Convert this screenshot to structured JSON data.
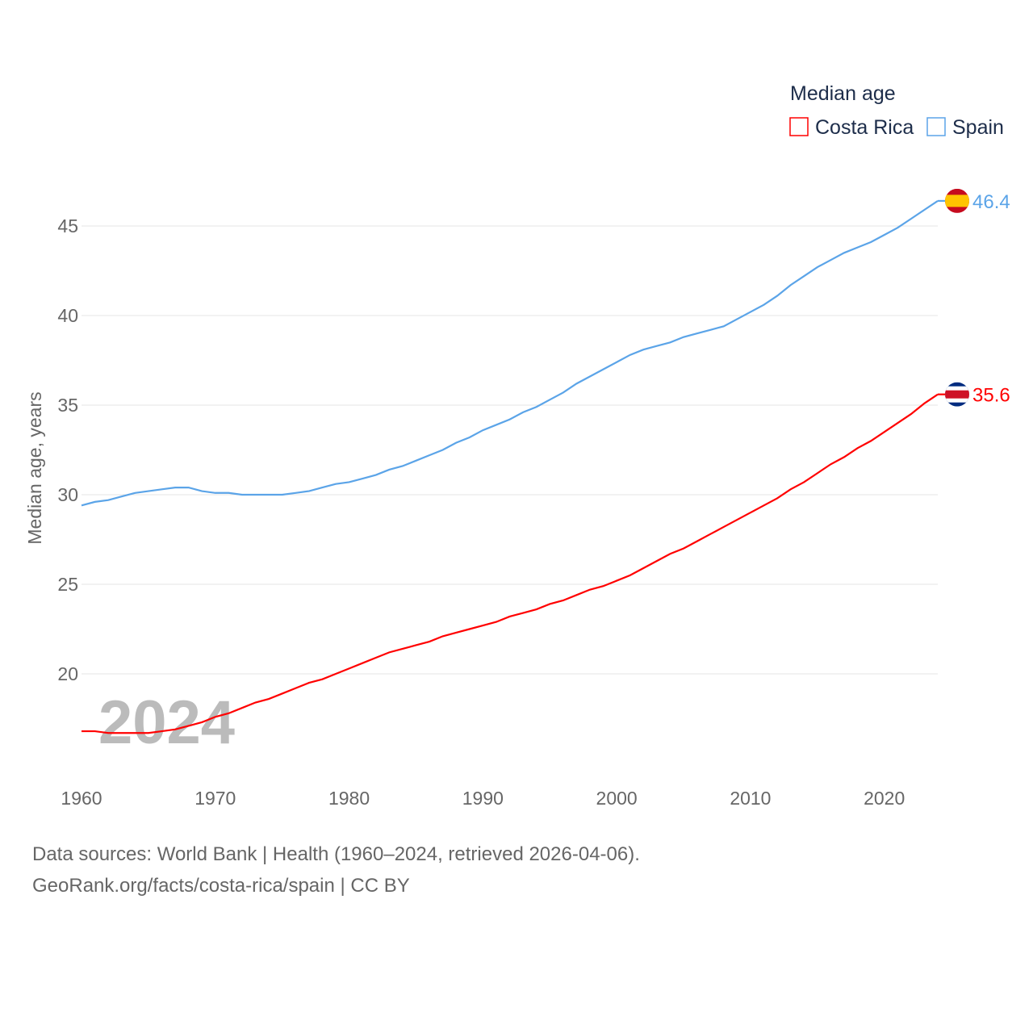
{
  "chart_data": {
    "type": "line",
    "title": "Median age",
    "ylabel": "Median age, years",
    "xlabel": "",
    "ylim": [
      15,
      47
    ],
    "xlim": [
      1960,
      2024
    ],
    "yticks": [
      20,
      25,
      30,
      35,
      40,
      45
    ],
    "xticks": [
      1960,
      1970,
      1980,
      1990,
      2000,
      2010,
      2020
    ],
    "grid": true,
    "legend_placement": "top-right",
    "year_label": "2024",
    "x": [
      1960,
      1961,
      1962,
      1963,
      1964,
      1965,
      1966,
      1967,
      1968,
      1969,
      1970,
      1971,
      1972,
      1973,
      1974,
      1975,
      1976,
      1977,
      1978,
      1979,
      1980,
      1981,
      1982,
      1983,
      1984,
      1985,
      1986,
      1987,
      1988,
      1989,
      1990,
      1991,
      1992,
      1993,
      1994,
      1995,
      1996,
      1997,
      1998,
      1999,
      2000,
      2001,
      2002,
      2003,
      2004,
      2005,
      2006,
      2007,
      2008,
      2009,
      2010,
      2011,
      2012,
      2013,
      2014,
      2015,
      2016,
      2017,
      2018,
      2019,
      2020,
      2021,
      2022,
      2023,
      2024
    ],
    "series": [
      {
        "name": "Costa Rica",
        "color": "#ff0000",
        "end_label": "35.6",
        "values": [
          16.8,
          16.8,
          16.7,
          16.7,
          16.7,
          16.7,
          16.8,
          16.9,
          17.1,
          17.3,
          17.6,
          17.8,
          18.1,
          18.4,
          18.6,
          18.9,
          19.2,
          19.5,
          19.7,
          20.0,
          20.3,
          20.6,
          20.9,
          21.2,
          21.4,
          21.6,
          21.8,
          22.1,
          22.3,
          22.5,
          22.7,
          22.9,
          23.2,
          23.4,
          23.6,
          23.9,
          24.1,
          24.4,
          24.7,
          24.9,
          25.2,
          25.5,
          25.9,
          26.3,
          26.7,
          27.0,
          27.4,
          27.8,
          28.2,
          28.6,
          29.0,
          29.4,
          29.8,
          30.3,
          30.7,
          31.2,
          31.7,
          32.1,
          32.6,
          33.0,
          33.5,
          34.0,
          34.5,
          35.1,
          35.6
        ]
      },
      {
        "name": "Spain",
        "color": "#5ba4e8",
        "end_label": "46.4",
        "values": [
          29.4,
          29.6,
          29.7,
          29.9,
          30.1,
          30.2,
          30.3,
          30.4,
          30.4,
          30.2,
          30.1,
          30.1,
          30.0,
          30.0,
          30.0,
          30.0,
          30.1,
          30.2,
          30.4,
          30.6,
          30.7,
          30.9,
          31.1,
          31.4,
          31.6,
          31.9,
          32.2,
          32.5,
          32.9,
          33.2,
          33.6,
          33.9,
          34.2,
          34.6,
          34.9,
          35.3,
          35.7,
          36.2,
          36.6,
          37.0,
          37.4,
          37.8,
          38.1,
          38.3,
          38.5,
          38.8,
          39.0,
          39.2,
          39.4,
          39.8,
          40.2,
          40.6,
          41.1,
          41.7,
          42.2,
          42.7,
          43.1,
          43.5,
          43.8,
          44.1,
          44.5,
          44.9,
          45.4,
          45.9,
          46.4
        ]
      }
    ]
  },
  "footer": {
    "line1": "Data sources: World Bank | Health (1960–2024, retrieved 2026-04-06).",
    "line2": "GeoRank.org/facts/costa-rica/spain | CC BY"
  }
}
